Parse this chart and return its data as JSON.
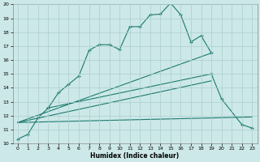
{
  "xlabel": "Humidex (Indice chaleur)",
  "bg_color": "#cde8e8",
  "grid_color": "#aacece",
  "line_color": "#1a7a6e",
  "xlim": [
    -0.5,
    23.5
  ],
  "ylim": [
    10,
    20
  ],
  "xticks": [
    0,
    1,
    2,
    3,
    4,
    5,
    6,
    7,
    8,
    9,
    10,
    11,
    12,
    13,
    14,
    15,
    16,
    17,
    18,
    19,
    20,
    21,
    22,
    23
  ],
  "yticks": [
    10,
    11,
    12,
    13,
    14,
    15,
    16,
    17,
    18,
    19,
    20
  ],
  "curve1_x": [
    0,
    1,
    2,
    3,
    4,
    5,
    6,
    7,
    8,
    9,
    10,
    11,
    12,
    13,
    14,
    15,
    16,
    17,
    18,
    19
  ],
  "curve1_y": [
    10.3,
    10.65,
    11.85,
    12.55,
    13.65,
    14.25,
    14.85,
    16.7,
    17.1,
    17.1,
    16.75,
    18.4,
    18.4,
    19.25,
    19.3,
    20.1,
    19.25,
    17.3,
    17.75,
    16.5
  ],
  "curve2_x": [
    3,
    19,
    20,
    22,
    23
  ],
  "curve2_y": [
    12.55,
    15.0,
    13.2,
    11.35,
    11.1
  ],
  "line1_x": [
    0,
    19
  ],
  "line1_y": [
    11.5,
    16.5
  ],
  "line2_x": [
    0,
    19
  ],
  "line2_y": [
    11.5,
    14.5
  ],
  "line3_x": [
    0,
    23
  ],
  "line3_y": [
    11.5,
    11.9
  ]
}
